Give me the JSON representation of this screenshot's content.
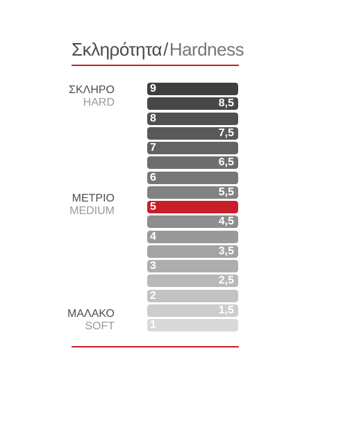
{
  "title": {
    "greek": "Σκληρότητα",
    "separator": "/",
    "english": "Hardness"
  },
  "labels": {
    "hard": {
      "greek": "ΣΚΛΗΡΟ",
      "english": "HARD"
    },
    "medium": {
      "greek": "ΜΕΤΡΙΟ",
      "english": "MEDIUM"
    },
    "soft": {
      "greek": "ΜΑΛΑΚΟ",
      "english": "SOFT"
    }
  },
  "scale": [
    {
      "value": "9",
      "color": "#3f3f3f"
    },
    {
      "value": "8,5",
      "color": "#474747"
    },
    {
      "value": "8",
      "color": "#505050"
    },
    {
      "value": "7,5",
      "color": "#595959"
    },
    {
      "value": "7",
      "color": "#636363"
    },
    {
      "value": "6,5",
      "color": "#6d6d6d"
    },
    {
      "value": "6",
      "color": "#777777"
    },
    {
      "value": "5,5",
      "color": "#828282"
    },
    {
      "value": "5",
      "color": "#c7202b",
      "highlight": true
    },
    {
      "value": "4,5",
      "color": "#8e8e8e"
    },
    {
      "value": "4",
      "color": "#999999"
    },
    {
      "value": "3,5",
      "color": "#a3a3a3"
    },
    {
      "value": "3",
      "color": "#aeaeae"
    },
    {
      "value": "2,5",
      "color": "#b8b8b8"
    },
    {
      "value": "2",
      "color": "#c3c3c3"
    },
    {
      "value": "1,5",
      "color": "#cdcdcd"
    },
    {
      "value": "1",
      "color": "#d9d9d9"
    }
  ],
  "accent_color": "#c4202a"
}
